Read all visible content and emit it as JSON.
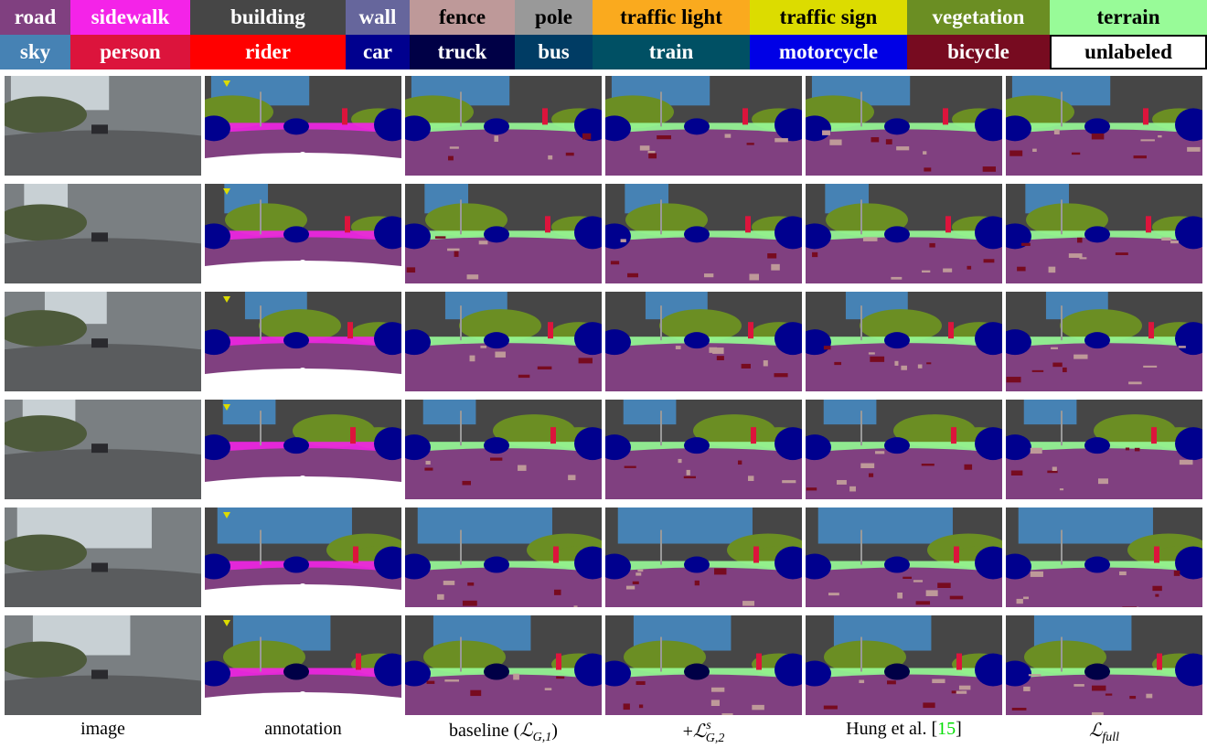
{
  "legend": {
    "rows": [
      [
        {
          "label": "road",
          "color": "#804080"
        },
        {
          "label": "sidewalk",
          "color": "#f423e8"
        },
        {
          "label": "building",
          "color": "#464646"
        },
        {
          "label": "wall",
          "color": "#66669c"
        },
        {
          "label": "fence",
          "color": "#be9999"
        },
        {
          "label": "pole",
          "color": "#999999"
        },
        {
          "label": "traffic light",
          "color": "#faaa1e"
        },
        {
          "label": "traffic sign",
          "color": "#dcdc00"
        },
        {
          "label": "vegetation",
          "color": "#6b8e23"
        },
        {
          "label": "terrain",
          "color": "#98fb98"
        }
      ],
      [
        {
          "label": "sky",
          "color": "#4682b4"
        },
        {
          "label": "person",
          "color": "#dc143c"
        },
        {
          "label": "rider",
          "color": "#ff0000"
        },
        {
          "label": "car",
          "color": "#00008e"
        },
        {
          "label": "truck",
          "color": "#000046"
        },
        {
          "label": "bus",
          "color": "#003c64"
        },
        {
          "label": "train",
          "color": "#005064"
        },
        {
          "label": "motorcycle",
          "color": "#0000e6"
        },
        {
          "label": "bicycle",
          "color": "#770b20"
        },
        {
          "label": "unlabeled",
          "color": "#ffffff"
        }
      ]
    ]
  },
  "captions": [
    [
      {
        "text": "image"
      }
    ],
    [
      {
        "text": "annotation"
      }
    ],
    [
      {
        "text": "baseline ("
      },
      {
        "text": "ℒ",
        "italic": true
      },
      {
        "text": "G,1",
        "sub": true
      },
      {
        "text": ")"
      }
    ],
    [
      {
        "text": "+"
      },
      {
        "text": "ℒ",
        "italic": true
      },
      {
        "text": "s",
        "sup": true
      },
      {
        "text": "G,2",
        "sub": true
      }
    ],
    [
      {
        "text": "Hung et al. ["
      },
      {
        "text": "15",
        "color": "#00dd00"
      },
      {
        "text": "]"
      }
    ],
    [
      {
        "text": "ℒ",
        "italic": true
      },
      {
        "text": "full",
        "sub": true
      }
    ]
  ]
}
